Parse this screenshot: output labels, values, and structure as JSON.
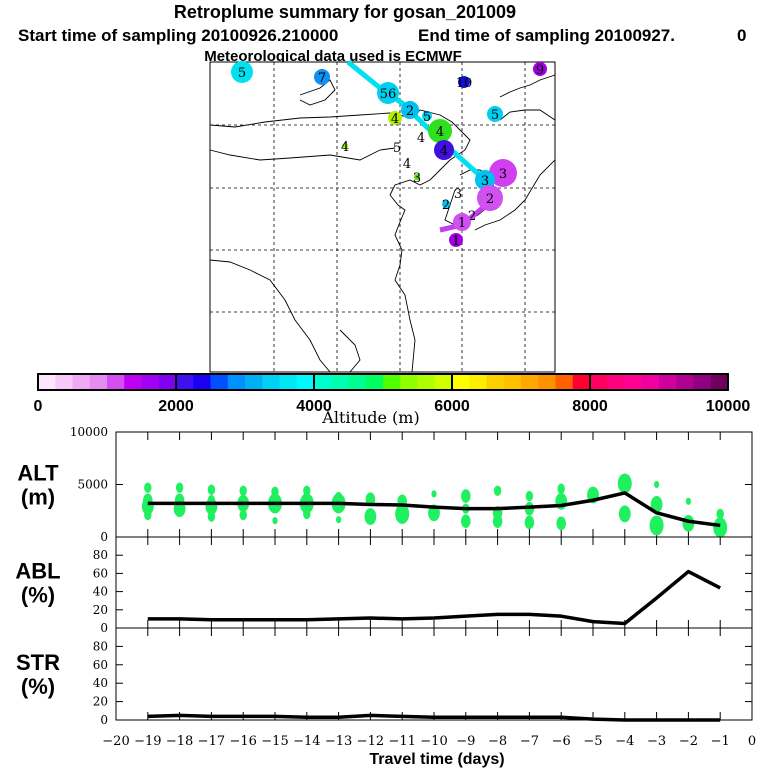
{
  "header": {
    "title": "Retroplume summary for gosan_201009",
    "start": "Start time of sampling 20100926.210000",
    "end": "End time of sampling 20100927.",
    "end_suffix": "0",
    "met": "Meteorological data used is ECMWF"
  },
  "map": {
    "markers": [
      {
        "label": "5",
        "color": "#00e0f0"
      },
      {
        "label": "7",
        "color": "#1090f0"
      },
      {
        "label": "10",
        "color": "#1010d0"
      },
      {
        "label": "9",
        "color": "#a000e0"
      },
      {
        "label": "56",
        "color": "#00d0f0"
      },
      {
        "label": "2",
        "color": "#00c0f0"
      },
      {
        "label": "4",
        "color": "#b0f000"
      },
      {
        "label": "5",
        "color": "#00d0f0"
      },
      {
        "label": "5",
        "color": "#00d0f0"
      },
      {
        "label": "4",
        "color": "#30e020"
      },
      {
        "label": "4",
        "color": ""
      },
      {
        "label": "4",
        "color": "#4010e0"
      },
      {
        "label": "4",
        "color": "#90f000"
      },
      {
        "label": "5",
        "color": ""
      },
      {
        "label": "4",
        "color": ""
      },
      {
        "label": "3",
        "color": "#50e000"
      },
      {
        "label": "3",
        "color": "#d040f0"
      },
      {
        "label": "3",
        "color": "#00c0f0"
      },
      {
        "label": "2",
        "color": "#d050f0"
      },
      {
        "label": "2",
        "color": "#00c0f0"
      },
      {
        "label": "3",
        "color": ""
      },
      {
        "label": "2",
        "color": ""
      },
      {
        "label": "1",
        "color": "#d050f0"
      },
      {
        "label": "1",
        "color": "#a000e0"
      }
    ],
    "trajectory_colors": [
      "#00e0f0",
      "#1010e0",
      "#c040f0"
    ]
  },
  "colorbar": {
    "label": "Altitude (m)",
    "ticks": [
      "0",
      "2000",
      "4000",
      "6000",
      "8000",
      "10000"
    ],
    "colors": [
      "#fde6fb",
      "#f8c8f8",
      "#f0aaf5",
      "#e58cf2",
      "#d54ff0",
      "#c000f0",
      "#a200f5",
      "#8000f0",
      "#4010f0",
      "#1a00f5",
      "#0050ff",
      "#0090ff",
      "#00b0f5",
      "#00d0f5",
      "#00e8f5",
      "#00f8ff",
      "#00ffd0",
      "#00ffb0",
      "#00ff90",
      "#00ff60",
      "#50ff00",
      "#90ff00",
      "#b0ff00",
      "#d0ff00",
      "#ffff00",
      "#ffee00",
      "#ffd000",
      "#ffc000",
      "#ffa800",
      "#ff9000",
      "#ff6000",
      "#ff0030",
      "#ff0060",
      "#ff0080",
      "#ff0090",
      "#f000a0",
      "#d000a0",
      "#b00090",
      "#900080",
      "#700060"
    ]
  },
  "chart_data": [
    {
      "type": "line",
      "panel_label": [
        "ALT",
        "(m)"
      ],
      "x": [
        -19,
        -18,
        -17,
        -16,
        -15,
        -14,
        -13,
        -12,
        -11,
        -10,
        -9,
        -8,
        -7,
        -6,
        -5,
        -4,
        -3,
        -2,
        -1
      ],
      "values": [
        3200,
        3200,
        3200,
        3200,
        3200,
        3200,
        3200,
        3100,
        3050,
        2850,
        2700,
        2700,
        2850,
        3000,
        3500,
        4200,
        2300,
        1500,
        1100
      ],
      "ylim": [
        0,
        10000
      ],
      "yticks": [
        "0",
        "5000",
        "10000"
      ],
      "scatter_color": "#20f060",
      "scatter": [
        [
          -19,
          4700,
          2
        ],
        [
          -19,
          3500,
          3
        ],
        [
          -19,
          2900,
          4
        ],
        [
          -19,
          2100,
          2
        ],
        [
          -18,
          4700,
          2
        ],
        [
          -18,
          3500,
          3
        ],
        [
          -18,
          2700,
          4
        ],
        [
          -17,
          4500,
          2
        ],
        [
          -17,
          3500,
          2
        ],
        [
          -17,
          2900,
          4
        ],
        [
          -17,
          1950,
          2
        ],
        [
          -16,
          4400,
          2
        ],
        [
          -16,
          3200,
          4
        ],
        [
          -16,
          2100,
          2
        ],
        [
          -15,
          4300,
          2
        ],
        [
          -15,
          3200,
          5
        ],
        [
          -15,
          1550,
          1
        ],
        [
          -14,
          4400,
          2
        ],
        [
          -14,
          3200,
          5
        ],
        [
          -14,
          2200,
          2
        ],
        [
          -13,
          3800,
          2
        ],
        [
          -13,
          3200,
          5
        ],
        [
          -13,
          1650,
          1
        ],
        [
          -12,
          3600,
          3
        ],
        [
          -12,
          1950,
          4
        ],
        [
          -11,
          3400,
          3
        ],
        [
          -11,
          2200,
          5
        ],
        [
          -10,
          4100,
          1
        ],
        [
          -10,
          2300,
          4
        ],
        [
          -9,
          3900,
          3
        ],
        [
          -9,
          2700,
          2
        ],
        [
          -9,
          1500,
          3
        ],
        [
          -8,
          4400,
          2
        ],
        [
          -8,
          2300,
          3
        ],
        [
          -8,
          1500,
          3
        ],
        [
          -7,
          3900,
          2
        ],
        [
          -7,
          2700,
          3
        ],
        [
          -7,
          1400,
          3
        ],
        [
          -6,
          4600,
          2
        ],
        [
          -6,
          3400,
          4
        ],
        [
          -6,
          1300,
          3
        ],
        [
          -5,
          4000,
          4
        ],
        [
          -4,
          5100,
          5
        ],
        [
          -4,
          2200,
          4
        ],
        [
          -3,
          5000,
          1
        ],
        [
          -3,
          3100,
          4
        ],
        [
          -3,
          1100,
          5
        ],
        [
          -2,
          3400,
          1
        ],
        [
          -2,
          1300,
          4
        ],
        [
          -1,
          2200,
          2
        ],
        [
          -1,
          900,
          5
        ]
      ]
    },
    {
      "type": "line",
      "panel_label": [
        "ABL",
        "(%)"
      ],
      "x": [
        -19,
        -18,
        -17,
        -16,
        -15,
        -14,
        -13,
        -12,
        -11,
        -10,
        -9,
        -8,
        -7,
        -6,
        -5,
        -4,
        -3,
        -2,
        -1
      ],
      "values": [
        10,
        10,
        9,
        9,
        9,
        9,
        10,
        11,
        10,
        11,
        13,
        15,
        15,
        13,
        7,
        5,
        33,
        62,
        44
      ],
      "ylim": [
        0,
        100
      ],
      "yticks": [
        "0",
        "20",
        "40",
        "60",
        "80"
      ]
    },
    {
      "type": "line",
      "panel_label": [
        "STR",
        "(%)"
      ],
      "x": [
        -19,
        -18,
        -17,
        -16,
        -15,
        -14,
        -13,
        -12,
        -11,
        -10,
        -9,
        -8,
        -7,
        -6,
        -5,
        -4,
        -3,
        -2,
        -1
      ],
      "values": [
        4,
        5,
        4,
        4,
        4,
        3,
        3,
        5,
        4,
        3,
        3,
        3,
        3,
        3,
        1,
        0,
        0,
        0,
        0
      ],
      "ylim": [
        0,
        100
      ],
      "yticks": [
        "0",
        "20",
        "40",
        "60",
        "80"
      ],
      "xlabel": "Travel time (days)",
      "xticks": [
        "−20",
        "−19",
        "−18",
        "−17",
        "−16",
        "−15",
        "−14",
        "−13",
        "−12",
        "−11",
        "−10",
        "−9",
        "−8",
        "−7",
        "−6",
        "−5",
        "−4",
        "−3",
        "−2",
        "−1",
        "0"
      ],
      "xlim": [
        -20,
        0
      ]
    }
  ]
}
